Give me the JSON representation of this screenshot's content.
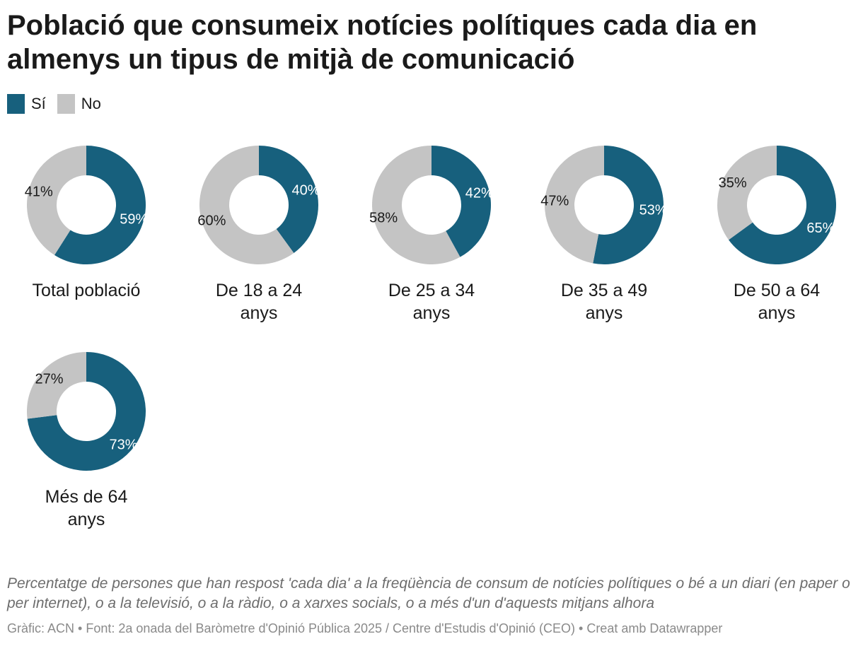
{
  "header": {
    "title": "Població que consumeix notícies polítiques cada dia en almenys un tipus de mitjà de comunicació"
  },
  "legend": {
    "items": [
      {
        "label": "Sí",
        "color": "#17607d"
      },
      {
        "label": "No",
        "color": "#c4c4c4"
      }
    ]
  },
  "chart_data": {
    "type": "pie",
    "subtype": "donut",
    "series_names": [
      "Sí",
      "No"
    ],
    "colors": {
      "Sí": "#17607d",
      "No": "#c4c4c4"
    },
    "value_suffix": "%",
    "charts": [
      {
        "label": "Total població",
        "label_lines": [
          "Total població"
        ],
        "values": {
          "Sí": 59,
          "No": 41
        }
      },
      {
        "label": "De 18 a 24 anys",
        "label_lines": [
          "De 18 a 24",
          "anys"
        ],
        "values": {
          "Sí": 40,
          "No": 60
        }
      },
      {
        "label": "De 25 a 34 anys",
        "label_lines": [
          "De 25 a 34",
          "anys"
        ],
        "values": {
          "Sí": 42,
          "No": 58
        }
      },
      {
        "label": "De 35 a 49 anys",
        "label_lines": [
          "De 35 a 49",
          "anys"
        ],
        "values": {
          "Sí": 53,
          "No": 47
        }
      },
      {
        "label": "De 50 a 64 anys",
        "label_lines": [
          "De 50 a 64",
          "anys"
        ],
        "values": {
          "Sí": 65,
          "No": 35
        }
      },
      {
        "label": "Més de 64 anys",
        "label_lines": [
          "Més de 64",
          "anys"
        ],
        "values": {
          "Sí": 73,
          "No": 27
        }
      }
    ]
  },
  "footer": {
    "notes": "Percentatge de persones que han respost 'cada dia' a la freqüència de consum de notícies polítiques o bé a un diari (en paper o per internet), o a la televisió, o a la ràdio, o a xarxes socials, o a més d'un d'aquests mitjans alhora",
    "credits": "Gràfic: ACN • Font: 2a onada del Baròmetre d'Opinió Pública 2025 / Centre d'Estudis d'Opinió (CEO) • Creat amb Datawrapper"
  }
}
